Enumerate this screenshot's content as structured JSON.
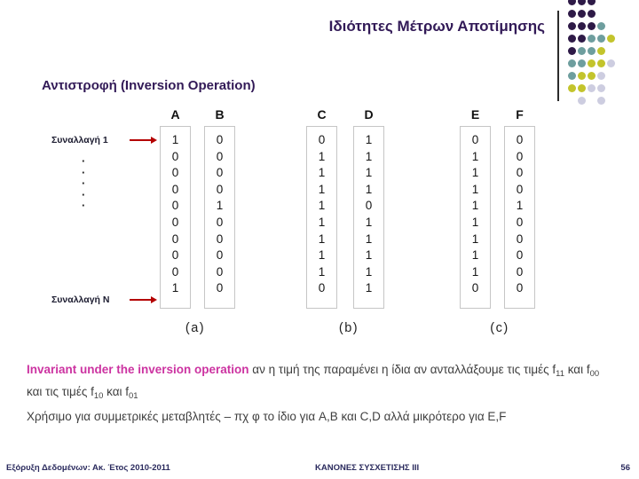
{
  "slide": {
    "title": "Ιδιότητες Μέτρων Αποτίμησης",
    "subtitle": "Αντιστροφή (Inversion Operation)"
  },
  "deco": {
    "colors": {
      "P": "#2e1a47",
      "T": "#6e9e9e",
      "Y": "#c3c42c",
      "L": "#cdcde0"
    },
    "rows": [
      [
        "P",
        "P",
        "P",
        null,
        null
      ],
      [
        "P",
        "P",
        "P",
        null,
        null
      ],
      [
        "P",
        "P",
        "P",
        "T",
        null
      ],
      [
        "P",
        "P",
        "T",
        "T",
        "Y"
      ],
      [
        "P",
        "T",
        "T",
        "Y",
        null
      ],
      [
        "T",
        "T",
        "Y",
        "Y",
        "L"
      ],
      [
        "T",
        "Y",
        "Y",
        "L",
        null
      ],
      [
        "Y",
        "Y",
        "L",
        "L",
        null
      ],
      [
        null,
        "L",
        null,
        "L",
        null
      ]
    ]
  },
  "table": {
    "row_label_top": "Συναλλαγή 1",
    "row_label_bottom": "Συναλλαγή Ν",
    "ellipsis": [
      "·",
      "·",
      "·",
      "·",
      "·"
    ],
    "columns": [
      {
        "name": "A",
        "values": [
          1,
          0,
          0,
          0,
          0,
          0,
          0,
          0,
          0,
          1
        ]
      },
      {
        "name": "B",
        "values": [
          0,
          0,
          0,
          0,
          1,
          0,
          0,
          0,
          0,
          0
        ]
      },
      {
        "name": "C",
        "values": [
          0,
          1,
          1,
          1,
          1,
          1,
          1,
          1,
          1,
          0
        ]
      },
      {
        "name": "D",
        "values": [
          1,
          1,
          1,
          1,
          0,
          1,
          1,
          1,
          1,
          1
        ]
      },
      {
        "name": "E",
        "values": [
          0,
          1,
          1,
          1,
          1,
          1,
          1,
          1,
          1,
          0
        ]
      },
      {
        "name": "F",
        "values": [
          0,
          0,
          0,
          0,
          1,
          0,
          0,
          0,
          0,
          0
        ]
      }
    ],
    "captions": [
      "(a)",
      "(b)",
      "(c)"
    ]
  },
  "body": {
    "highlight_color": "#cc33a1",
    "p1_highlight": "Invariant under the inversion operation",
    "p1_segments": [
      {
        "text": " αν η τιμή της παραμένει η ίδια αν ανταλλάξουμε τις τιμές f"
      },
      {
        "sub": "11"
      },
      {
        "text": " και f"
      },
      {
        "sub": "00"
      },
      {
        "text": " και τις τιμές f"
      },
      {
        "sub": "10"
      },
      {
        "text": " και f"
      },
      {
        "sub": "01"
      }
    ],
    "p2": "Χρήσιμο για συμμετρικές μεταβλητές – πχ φ το ίδιο για A,B και C,D αλλά μικρότερο για E,F"
  },
  "footer": {
    "left": "Εξόρυξη Δεδομένων: Ακ. Έτος 2010-2011",
    "center": "ΚΑΝΟΝΕΣ ΣΥΣΧΕΤΙΣΗΣ III",
    "page": "56"
  }
}
